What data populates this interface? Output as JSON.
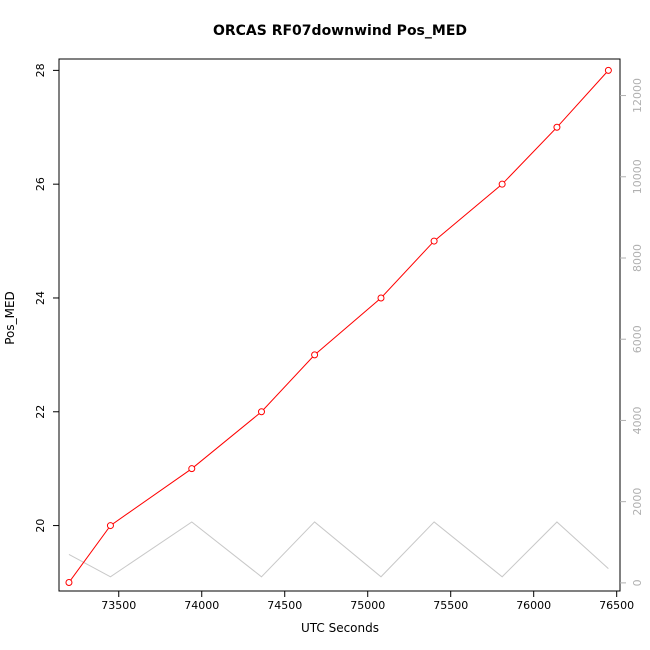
{
  "chart_data": {
    "type": "line",
    "title": "ORCAS RF07downwind Pos_MED",
    "xlabel": "UTC Seconds",
    "ylabel": "Pos_MED",
    "xlim": [
      73140,
      76520
    ],
    "ylim": [
      18.85,
      28.2
    ],
    "ylim_right": [
      -200,
      12900
    ],
    "x_ticks": [
      73500,
      74000,
      74500,
      75000,
      75500,
      76000,
      76500
    ],
    "y_ticks": [
      20,
      22,
      24,
      26,
      28
    ],
    "y_ticks_right": [
      0,
      2000,
      4000,
      6000,
      8000,
      10000,
      12000
    ],
    "grid": false,
    "colors": {
      "primary": "#ff0000",
      "secondary": "#c8c8c8",
      "right_axis": "#b0b0b0"
    },
    "series": [
      {
        "axis": "left",
        "markers": true,
        "x": [
          73200,
          73450,
          73940,
          74360,
          74680,
          75080,
          75400,
          75810,
          76140,
          76450
        ],
        "values": [
          19,
          20,
          21,
          22,
          23,
          24,
          25,
          26,
          27,
          28
        ]
      },
      {
        "axis": "right",
        "markers": false,
        "x": [
          73200,
          73450,
          73940,
          74360,
          74680,
          75080,
          75400,
          75810,
          76140,
          76450
        ],
        "values": [
          700,
          150,
          1500,
          150,
          1500,
          150,
          1500,
          150,
          1500,
          350
        ]
      }
    ]
  }
}
